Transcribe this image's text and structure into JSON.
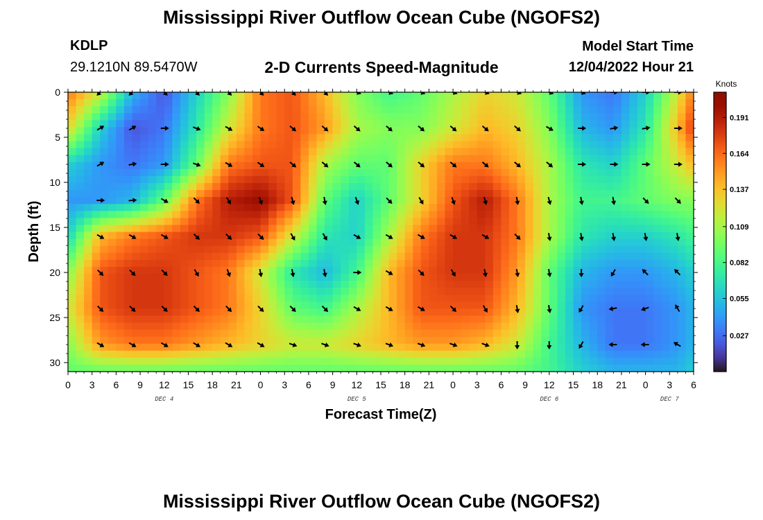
{
  "header": {
    "title": "Mississippi River Outflow Ocean Cube (NGOFS2)",
    "station_id": "KDLP",
    "station_location": "29.1210N  89.5470W",
    "subtitle": "2-D Currents Speed-Magnitude",
    "model_start_label": "Model Start Time",
    "model_start_value": "12/04/2022 Hour 21"
  },
  "footer": {
    "title": "Mississippi River Outflow Ocean Cube (NGOFS2)"
  },
  "chart_data": {
    "type": "heatmap",
    "title": "2-D Currents Speed-Magnitude",
    "xlabel": "Forecast Time(Z)",
    "ylabel": "Depth (ft)",
    "x_range_hours": [
      0,
      78
    ],
    "y_range_ft": [
      0,
      31
    ],
    "x_tick_labels": [
      "0",
      "3",
      "6",
      "9",
      "12",
      "15",
      "18",
      "21",
      "0",
      "3",
      "6",
      "9",
      "12",
      "15",
      "18",
      "21",
      "0",
      "3",
      "6",
      "9",
      "12",
      "15",
      "18",
      "21",
      "0",
      "3",
      "6"
    ],
    "y_ticks": [
      0,
      5,
      10,
      15,
      20,
      25,
      30
    ],
    "day_labels": [
      {
        "label": "DEC 4",
        "hour": 12
      },
      {
        "label": "DEC 5",
        "hour": 36
      },
      {
        "label": "DEC 6",
        "hour": 60
      },
      {
        "label": "DEC 7",
        "hour": 75
      }
    ],
    "colorbar": {
      "units": "Knots",
      "min": 0.0,
      "max": 0.21,
      "tick_values": [
        0.191,
        0.164,
        0.137,
        0.109,
        0.082,
        0.055,
        0.027
      ],
      "tick_labels": [
        "0.191",
        "0.164",
        "0.137",
        "0.109",
        "0.082",
        "0.055",
        "0.027"
      ],
      "colormap": "turbo"
    },
    "speed_grid": {
      "hours": [
        0,
        4,
        8,
        12,
        16,
        20,
        24,
        28,
        32,
        36,
        40,
        44,
        48,
        52,
        56,
        60,
        64,
        68,
        72,
        76,
        78
      ],
      "depths": [
        0,
        4,
        8,
        12,
        16,
        20,
        24,
        28,
        31
      ],
      "values_knots": [
        [
          0.16,
          0.12,
          0.05,
          0.02,
          0.06,
          0.1,
          0.16,
          0.17,
          0.14,
          0.1,
          0.08,
          0.09,
          0.11,
          0.13,
          0.12,
          0.09,
          0.04,
          0.03,
          0.06,
          0.12,
          0.16
        ],
        [
          0.13,
          0.06,
          0.02,
          0.03,
          0.07,
          0.12,
          0.16,
          0.17,
          0.15,
          0.11,
          0.1,
          0.1,
          0.12,
          0.14,
          0.13,
          0.1,
          0.05,
          0.04,
          0.07,
          0.14,
          0.18
        ],
        [
          0.06,
          0.04,
          0.03,
          0.04,
          0.09,
          0.16,
          0.17,
          0.17,
          0.11,
          0.09,
          0.09,
          0.13,
          0.16,
          0.16,
          0.14,
          0.11,
          0.07,
          0.06,
          0.09,
          0.12,
          0.14
        ],
        [
          0.04,
          0.04,
          0.05,
          0.09,
          0.16,
          0.19,
          0.2,
          0.17,
          0.09,
          0.06,
          0.09,
          0.13,
          0.17,
          0.19,
          0.16,
          0.11,
          0.08,
          0.08,
          0.09,
          0.1,
          0.1
        ],
        [
          0.06,
          0.14,
          0.16,
          0.17,
          0.18,
          0.18,
          0.17,
          0.12,
          0.07,
          0.06,
          0.11,
          0.16,
          0.18,
          0.18,
          0.16,
          0.11,
          0.07,
          0.06,
          0.06,
          0.07,
          0.08
        ],
        [
          0.1,
          0.17,
          0.18,
          0.18,
          0.17,
          0.16,
          0.12,
          0.07,
          0.05,
          0.08,
          0.14,
          0.17,
          0.18,
          0.18,
          0.15,
          0.09,
          0.05,
          0.04,
          0.04,
          0.05,
          0.06
        ],
        [
          0.12,
          0.17,
          0.18,
          0.18,
          0.17,
          0.16,
          0.13,
          0.09,
          0.08,
          0.11,
          0.14,
          0.17,
          0.17,
          0.17,
          0.14,
          0.09,
          0.04,
          0.03,
          0.03,
          0.04,
          0.05
        ],
        [
          0.1,
          0.15,
          0.16,
          0.16,
          0.15,
          0.14,
          0.13,
          0.12,
          0.12,
          0.13,
          0.14,
          0.15,
          0.15,
          0.14,
          0.12,
          0.08,
          0.05,
          0.03,
          0.03,
          0.04,
          0.05
        ],
        [
          0.09,
          0.09,
          0.09,
          0.09,
          0.09,
          0.09,
          0.09,
          0.09,
          0.09,
          0.09,
          0.09,
          0.09,
          0.09,
          0.09,
          0.09,
          0.08,
          0.06,
          0.05,
          0.05,
          0.05,
          0.06
        ]
      ]
    },
    "current_vectors": {
      "description": "direction arrows (degrees, 0 = pointing right, positive = clockwise/downward)",
      "hours": [
        4,
        8,
        12,
        16,
        20,
        24,
        28,
        32,
        36,
        40,
        44,
        48,
        52,
        56,
        60,
        64,
        68,
        72,
        76
      ],
      "depths": [
        0,
        4,
        8,
        12,
        16,
        20,
        24,
        28
      ],
      "angles_deg": [
        [
          135,
          135,
          45,
          45,
          45,
          45,
          45,
          45,
          20,
          20,
          20,
          20,
          20,
          20,
          20,
          20,
          0,
          0,
          0
        ],
        [
          -30,
          -30,
          0,
          20,
          30,
          35,
          40,
          40,
          40,
          40,
          40,
          40,
          40,
          40,
          30,
          0,
          -10,
          -10,
          0
        ],
        [
          -30,
          -10,
          0,
          20,
          30,
          35,
          40,
          40,
          40,
          40,
          40,
          40,
          40,
          40,
          40,
          0,
          0,
          0,
          0
        ],
        [
          0,
          -5,
          30,
          45,
          60,
          70,
          75,
          80,
          70,
          45,
          60,
          70,
          75,
          80,
          75,
          80,
          80,
          45,
          45
        ],
        [
          30,
          30,
          30,
          45,
          45,
          45,
          60,
          60,
          30,
          30,
          30,
          30,
          30,
          45,
          80,
          80,
          80,
          80,
          80
        ],
        [
          45,
          45,
          45,
          60,
          70,
          80,
          80,
          80,
          0,
          30,
          45,
          60,
          80,
          80,
          80,
          90,
          120,
          -135,
          -135
        ],
        [
          45,
          45,
          45,
          45,
          45,
          45,
          45,
          45,
          30,
          30,
          30,
          45,
          60,
          80,
          80,
          120,
          170,
          160,
          -120
        ],
        [
          30,
          30,
          30,
          30,
          30,
          30,
          20,
          20,
          20,
          20,
          20,
          20,
          20,
          90,
          90,
          120,
          180,
          180,
          -150
        ]
      ]
    }
  }
}
